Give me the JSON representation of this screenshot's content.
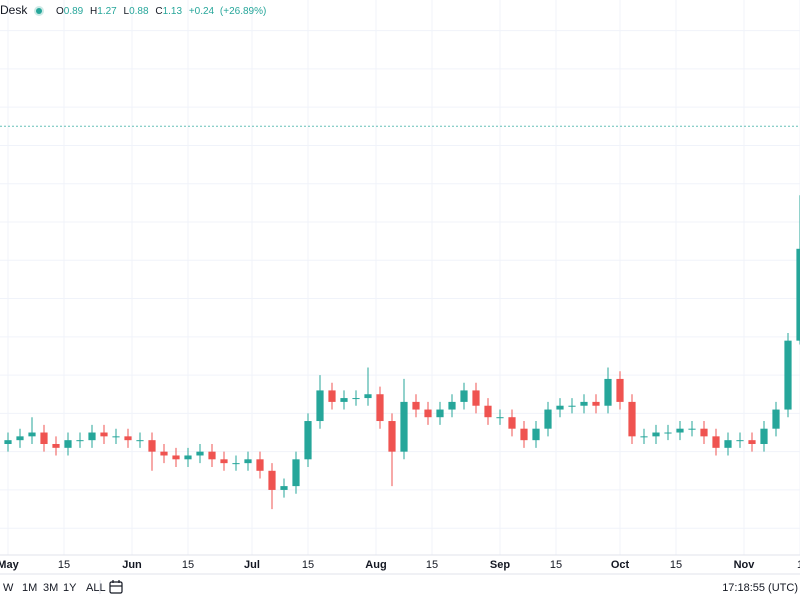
{
  "header": {
    "title": "Desk",
    "open_label": "O",
    "open": "0.89",
    "high_label": "H",
    "high": "1.27",
    "low_label": "L",
    "low": "0.88",
    "close_label": "C",
    "close": "1.13",
    "change": "+0.24",
    "change_pct": "(+26.89%)"
  },
  "toolbar": {
    "ranges": [
      "W",
      "1M",
      "3M",
      "1Y",
      "ALL"
    ],
    "time": "17:18:55 (UTC)"
  },
  "chart_data": {
    "type": "candlestick",
    "up_color": "#26a69a",
    "down_color": "#ef5350",
    "x": [
      0,
      3,
      6,
      9,
      12,
      15,
      18,
      21,
      24,
      27,
      30,
      33,
      36,
      39,
      42,
      45,
      48,
      51,
      54,
      57,
      60,
      63,
      66,
      69,
      72,
      75,
      78,
      81,
      84,
      87,
      90,
      93,
      96,
      99,
      102,
      105,
      108,
      111,
      114,
      117,
      120,
      123,
      126,
      129,
      132,
      135,
      138,
      141,
      144,
      147,
      150,
      153,
      156,
      159,
      162,
      165,
      168,
      171,
      174,
      177,
      180,
      183,
      186,
      189,
      192,
      195,
      198
    ],
    "open": [
      0.62,
      0.63,
      0.64,
      0.65,
      0.62,
      0.61,
      0.63,
      0.63,
      0.65,
      0.64,
      0.64,
      0.63,
      0.63,
      0.6,
      0.59,
      0.58,
      0.59,
      0.6,
      0.58,
      0.57,
      0.57,
      0.58,
      0.55,
      0.5,
      0.51,
      0.58,
      0.68,
      0.76,
      0.73,
      0.74,
      0.74,
      0.75,
      0.68,
      0.6,
      0.73,
      0.71,
      0.69,
      0.71,
      0.73,
      0.76,
      0.72,
      0.69,
      0.69,
      0.66,
      0.63,
      0.66,
      0.71,
      0.72,
      0.72,
      0.73,
      0.72,
      0.79,
      0.73,
      0.64,
      0.64,
      0.65,
      0.65,
      0.66,
      0.66,
      0.64,
      0.61,
      0.63,
      0.63,
      0.62,
      0.66,
      0.71,
      0.89
    ],
    "high": [
      0.65,
      0.66,
      0.69,
      0.67,
      0.64,
      0.65,
      0.65,
      0.67,
      0.67,
      0.66,
      0.66,
      0.65,
      0.65,
      0.62,
      0.61,
      0.61,
      0.62,
      0.62,
      0.6,
      0.59,
      0.6,
      0.6,
      0.57,
      0.53,
      0.6,
      0.7,
      0.8,
      0.78,
      0.76,
      0.76,
      0.82,
      0.77,
      0.7,
      0.79,
      0.75,
      0.73,
      0.73,
      0.75,
      0.78,
      0.78,
      0.74,
      0.71,
      0.71,
      0.68,
      0.68,
      0.73,
      0.74,
      0.74,
      0.75,
      0.75,
      0.82,
      0.81,
      0.75,
      0.66,
      0.67,
      0.67,
      0.68,
      0.68,
      0.68,
      0.66,
      0.65,
      0.65,
      0.65,
      0.68,
      0.73,
      0.91,
      1.27
    ],
    "low": [
      0.6,
      0.61,
      0.62,
      0.6,
      0.59,
      0.59,
      0.61,
      0.61,
      0.62,
      0.62,
      0.61,
      0.61,
      0.55,
      0.57,
      0.56,
      0.56,
      0.57,
      0.56,
      0.55,
      0.55,
      0.55,
      0.53,
      0.45,
      0.48,
      0.49,
      0.56,
      0.66,
      0.71,
      0.71,
      0.72,
      0.72,
      0.66,
      0.51,
      0.58,
      0.69,
      0.67,
      0.67,
      0.69,
      0.71,
      0.7,
      0.67,
      0.67,
      0.64,
      0.61,
      0.61,
      0.64,
      0.69,
      0.7,
      0.7,
      0.7,
      0.7,
      0.71,
      0.62,
      0.62,
      0.62,
      0.63,
      0.63,
      0.64,
      0.62,
      0.59,
      0.59,
      0.61,
      0.6,
      0.6,
      0.64,
      0.69,
      0.88
    ],
    "close": [
      0.63,
      0.64,
      0.65,
      0.62,
      0.61,
      0.63,
      0.63,
      0.65,
      0.64,
      0.64,
      0.63,
      0.63,
      0.6,
      0.59,
      0.58,
      0.59,
      0.6,
      0.58,
      0.57,
      0.57,
      0.58,
      0.55,
      0.5,
      0.51,
      0.58,
      0.68,
      0.76,
      0.73,
      0.74,
      0.74,
      0.75,
      0.68,
      0.6,
      0.73,
      0.71,
      0.69,
      0.71,
      0.73,
      0.76,
      0.72,
      0.69,
      0.69,
      0.66,
      0.63,
      0.66,
      0.71,
      0.72,
      0.72,
      0.73,
      0.72,
      0.79,
      0.73,
      0.64,
      0.64,
      0.65,
      0.65,
      0.66,
      0.66,
      0.64,
      0.61,
      0.63,
      0.63,
      0.62,
      0.66,
      0.71,
      0.89,
      1.13
    ],
    "xlim": [
      -2,
      198
    ],
    "xticks": [
      {
        "value": 0,
        "label": "May"
      },
      {
        "value": 14,
        "label": "15"
      },
      {
        "value": 31,
        "label": "Jun"
      },
      {
        "value": 45,
        "label": "15"
      },
      {
        "value": 61,
        "label": "Jul"
      },
      {
        "value": 75,
        "label": "15"
      },
      {
        "value": 92,
        "label": "Aug"
      },
      {
        "value": 106,
        "label": "15"
      },
      {
        "value": 123,
        "label": "Sep"
      },
      {
        "value": 137,
        "label": "15"
      },
      {
        "value": 153,
        "label": "Oct"
      },
      {
        "value": 167,
        "label": "15"
      },
      {
        "value": 184,
        "label": "Nov"
      },
      {
        "value": 198,
        "label": "1"
      }
    ],
    "ylim": [
      0.33,
      1.78
    ],
    "ygrid": [
      0.4,
      0.5,
      0.6,
      0.7,
      0.8,
      0.9,
      1.0,
      1.1,
      1.2,
      1.3,
      1.4,
      1.5,
      1.6,
      1.7
    ],
    "reference_line": 1.45,
    "grid": true
  }
}
